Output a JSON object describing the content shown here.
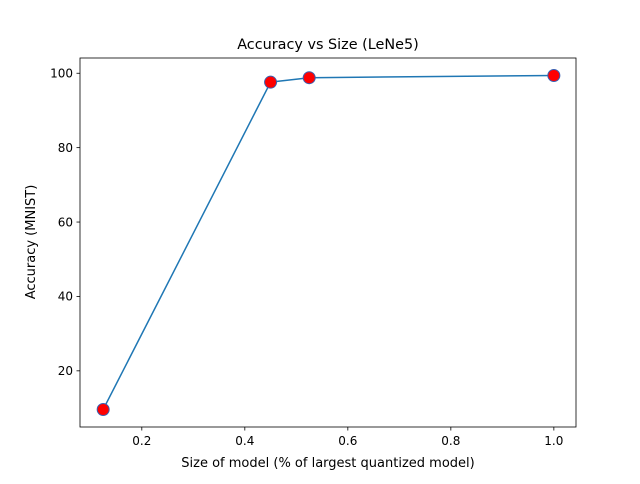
{
  "chart_data": {
    "type": "line",
    "title": "Accuracy vs Size (LeNe5)",
    "xlabel": "Size of model (% of largest quantized model)",
    "ylabel": "Accuracy (MNIST)",
    "xlim": [
      0.08,
      1.043
    ],
    "ylim": [
      4.9,
      104.1
    ],
    "xticks": [
      0.2,
      0.4,
      0.6,
      0.8,
      1.0
    ],
    "xtick_labels": [
      "0.2",
      "0.4",
      "0.6",
      "0.8",
      "1.0"
    ],
    "yticks": [
      20,
      40,
      60,
      80,
      100
    ],
    "ytick_labels": [
      "20",
      "40",
      "60",
      "80",
      "100"
    ],
    "grid": false,
    "series": [
      {
        "x": [
          0.125,
          0.45,
          0.525,
          1.0
        ],
        "y": [
          9.6,
          97.6,
          98.8,
          99.4
        ],
        "line_color": "#1f77b4",
        "marker_face": "#ff0000",
        "marker_edge": "#3b5fb0"
      }
    ]
  }
}
